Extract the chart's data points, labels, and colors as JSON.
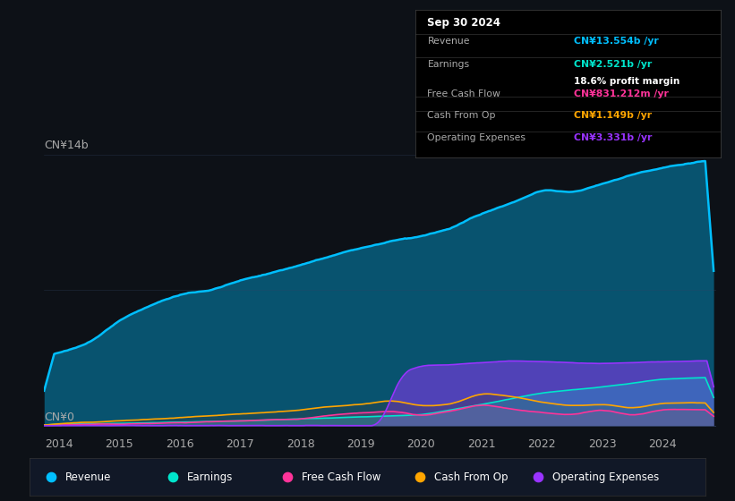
{
  "bg_color": "#0d1117",
  "plot_bg_color": "#0d1117",
  "y_label_top": "CN¥14b",
  "y_label_bottom": "CN¥0",
  "x_ticks": [
    2014,
    2015,
    2016,
    2017,
    2018,
    2019,
    2020,
    2021,
    2022,
    2023,
    2024
  ],
  "colors": {
    "revenue": "#00bfff",
    "earnings": "#00e5cc",
    "free_cash_flow": "#ff3399",
    "cash_from_op": "#ffa500",
    "operating_expenses": "#9933ff"
  },
  "info_box": {
    "title": "Sep 30 2024",
    "revenue": "CN¥13.554b /yr",
    "earnings": "CN¥2.521b /yr",
    "profit_margin": "18.6% profit margin",
    "free_cash_flow": "CN¥831.212m /yr",
    "cash_from_op": "CN¥1.149b /yr",
    "operating_expenses": "CN¥3.331b /yr"
  },
  "legend": [
    "Revenue",
    "Earnings",
    "Free Cash Flow",
    "Cash From Op",
    "Operating Expenses"
  ]
}
